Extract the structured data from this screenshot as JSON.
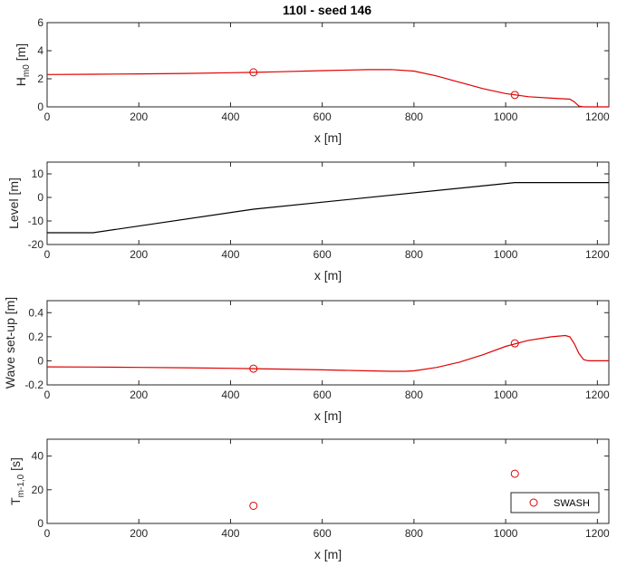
{
  "figure": {
    "title": "110l - seed 146"
  },
  "colors": {
    "model": "#e00000",
    "bathymetry": "#000000",
    "axes": "#262626"
  },
  "chart_data": [
    {
      "id": "hm0",
      "type": "line",
      "xlabel": "x [m]",
      "ylabel_main": "H",
      "ylabel_sub": "m0",
      "ylabel_unit": " [m]",
      "xlim": [
        0,
        1225
      ],
      "ylim": [
        0,
        6
      ],
      "xticks": [
        0,
        200,
        400,
        600,
        800,
        1000,
        1200
      ],
      "yticks": [
        0,
        2,
        4,
        6
      ],
      "series": [
        {
          "kind": "line",
          "color": "#e00000",
          "x": [
            0,
            100,
            200,
            300,
            400,
            450,
            500,
            600,
            700,
            750,
            800,
            850,
            900,
            950,
            1000,
            1050,
            1100,
            1140,
            1150,
            1160,
            1170,
            1180,
            1225
          ],
          "y": [
            2.3,
            2.32,
            2.35,
            2.38,
            2.43,
            2.46,
            2.5,
            2.58,
            2.65,
            2.66,
            2.55,
            2.2,
            1.75,
            1.3,
            0.95,
            0.72,
            0.62,
            0.55,
            0.35,
            0.05,
            0,
            0,
            0
          ]
        },
        {
          "kind": "markers",
          "color": "#e00000",
          "x": [
            450,
            1020
          ],
          "y": [
            2.46,
            0.85
          ]
        }
      ]
    },
    {
      "id": "level",
      "type": "line",
      "xlabel": "x [m]",
      "ylabel_main": "Level [m]",
      "xlim": [
        0,
        1225
      ],
      "ylim": [
        -20,
        15
      ],
      "xticks": [
        0,
        200,
        400,
        600,
        800,
        1000,
        1200
      ],
      "yticks": [
        -20,
        -10,
        0,
        10
      ],
      "series": [
        {
          "kind": "line",
          "color": "#000000",
          "x": [
            0,
            100,
            450,
            1020,
            1225
          ],
          "y": [
            -15,
            -15,
            -5,
            6.3,
            6.3
          ]
        }
      ]
    },
    {
      "id": "setup",
      "type": "line",
      "xlabel": "x [m]",
      "ylabel_main": "Wave set-up [m]",
      "xlim": [
        0,
        1225
      ],
      "ylim": [
        -0.2,
        0.5
      ],
      "xticks": [
        0,
        200,
        400,
        600,
        800,
        1000,
        1200
      ],
      "yticks": [
        -0.2,
        0,
        0.2,
        0.4
      ],
      "series": [
        {
          "kind": "line",
          "color": "#e00000",
          "x": [
            0,
            100,
            200,
            300,
            400,
            450,
            500,
            600,
            700,
            750,
            780,
            800,
            850,
            900,
            950,
            1000,
            1050,
            1100,
            1130,
            1140,
            1150,
            1160,
            1170,
            1180,
            1225
          ],
          "y": [
            -0.05,
            -0.052,
            -0.055,
            -0.058,
            -0.062,
            -0.065,
            -0.068,
            -0.075,
            -0.083,
            -0.087,
            -0.087,
            -0.083,
            -0.055,
            -0.01,
            0.05,
            0.12,
            0.17,
            0.2,
            0.21,
            0.2,
            0.14,
            0.06,
            0.01,
            0,
            0
          ]
        },
        {
          "kind": "markers",
          "color": "#e00000",
          "x": [
            450,
            1020
          ],
          "y": [
            -0.065,
            0.145
          ]
        }
      ]
    },
    {
      "id": "tm10",
      "type": "scatter",
      "xlabel": "x [m]",
      "ylabel_main": "T",
      "ylabel_sub": "m-1,0",
      "ylabel_unit": " [s]",
      "xlim": [
        0,
        1225
      ],
      "ylim": [
        0,
        50
      ],
      "xticks": [
        0,
        200,
        400,
        600,
        800,
        1000,
        1200
      ],
      "yticks": [
        0,
        20,
        40
      ],
      "legend": {
        "placement": "bottom-right",
        "label": "SWASH"
      },
      "series": [
        {
          "kind": "markers",
          "color": "#e00000",
          "name": "SWASH",
          "x": [
            450,
            1020
          ],
          "y": [
            10.5,
            29.5
          ]
        }
      ]
    }
  ]
}
